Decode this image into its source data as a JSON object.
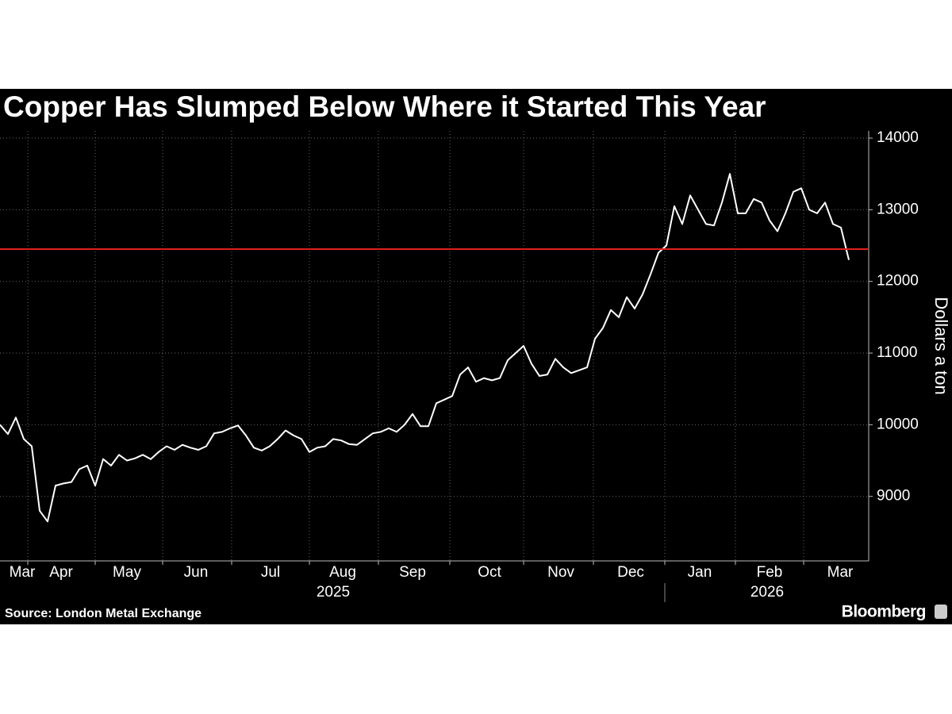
{
  "chart_data": {
    "type": "line",
    "title": "Copper Has Slumped Below Where it Started This Year",
    "y_label": "Dollars a ton",
    "source": "Source: London Metal Exchange",
    "brand": "Bloomberg",
    "color": "#ffffff",
    "reference_line": {
      "value": 12450,
      "color": "#e02020"
    },
    "values": [
      10000,
      9870,
      10100,
      9800,
      9700,
      8800,
      8650,
      9150,
      9180,
      9200,
      9380,
      9430,
      9150,
      9520,
      9430,
      9580,
      9500,
      9530,
      9580,
      9520,
      9620,
      9700,
      9650,
      9720,
      9680,
      9650,
      9700,
      9880,
      9900,
      9950,
      9990,
      9850,
      9680,
      9640,
      9700,
      9800,
      9920,
      9850,
      9800,
      9620,
      9680,
      9700,
      9800,
      9780,
      9730,
      9720,
      9800,
      9880,
      9900,
      9950,
      9900,
      10000,
      10150,
      9980,
      9980,
      10300,
      10350,
      10400,
      10700,
      10800,
      10600,
      10650,
      10620,
      10650,
      10900,
      11000,
      11100,
      10850,
      10680,
      10700,
      10920,
      10800,
      10720,
      10760,
      10800,
      11200,
      11350,
      11600,
      11500,
      11780,
      11620,
      11820,
      12100,
      12400,
      12500,
      13050,
      12800,
      13200,
      13000,
      12800,
      12780,
      13100,
      13500,
      12950,
      12950,
      13150,
      13100,
      12850,
      12700,
      12950,
      13250,
      13300,
      13000,
      12950,
      13100,
      12800,
      12750,
      12300
    ],
    "xlim": [
      0,
      109.5
    ],
    "xticks": [
      {
        "value": 2.8,
        "label": "Mar"
      },
      {
        "value": 7.7,
        "label": "Apr"
      },
      {
        "value": 16,
        "label": "May"
      },
      {
        "value": 24.7,
        "label": "Jun"
      },
      {
        "value": 34.1,
        "label": "Jul"
      },
      {
        "value": 43.2,
        "label": "Aug"
      },
      {
        "value": 52,
        "label": "Sep"
      },
      {
        "value": 61.7,
        "label": "Oct"
      },
      {
        "value": 70.7,
        "label": "Nov"
      },
      {
        "value": 79.5,
        "label": "Dec"
      },
      {
        "value": 88.2,
        "label": "Jan"
      },
      {
        "value": 97,
        "label": "Feb"
      },
      {
        "value": 105.9,
        "label": "Mar"
      }
    ],
    "xgrid": [
      3.5,
      12,
      20.5,
      29.2,
      39,
      47.7,
      56.7,
      66,
      74.8,
      83.8,
      92.7,
      101.3
    ],
    "year_labels": [
      {
        "value": 42,
        "label": "2025"
      },
      {
        "value": 96.7,
        "label": "2026"
      }
    ],
    "year_divider": 83.8,
    "ylim": [
      8100,
      14100
    ],
    "yticks": [
      9000,
      10000,
      11000,
      12000,
      13000,
      14000
    ],
    "grid": true
  }
}
